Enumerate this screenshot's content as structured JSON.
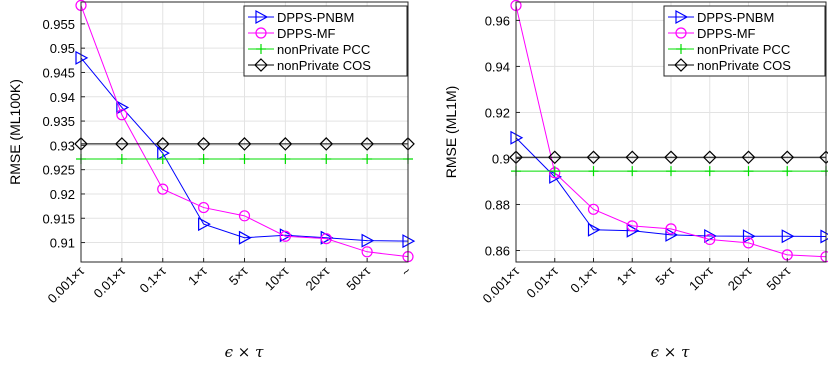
{
  "chart_data": [
    {
      "type": "line",
      "ylabel": "RMSE (ML100K)",
      "xlabel": "ϵ × τ",
      "categories": [
        "0.001×τ",
        "0.01×τ",
        "0.1×τ",
        "1×τ",
        "5×τ",
        "10×τ",
        "20×τ",
        "50×τ",
        "~"
      ],
      "ylim": [
        0.906,
        0.9595
      ],
      "yticks": [
        0.91,
        0.915,
        0.92,
        0.925,
        0.93,
        0.935,
        0.94,
        0.945,
        0.95,
        0.955
      ],
      "ytick_labels": [
        "0.91",
        "0.915",
        "0.92",
        "0.925",
        "0.93",
        "0.935",
        "0.94",
        "0.945",
        "0.95",
        "0.955"
      ],
      "grid": true,
      "legend_position": "top-right",
      "series": [
        {
          "name": "DPPS-PNBM",
          "color": "#0000ff",
          "marker": "triangle-right",
          "values": [
            0.948,
            0.9378,
            0.9284,
            0.9138,
            0.911,
            0.9115,
            0.911,
            0.9104,
            0.9103
          ]
        },
        {
          "name": "DPPS-MF",
          "color": "#ff00ff",
          "marker": "circle",
          "values": [
            0.9588,
            0.9363,
            0.921,
            0.9172,
            0.9155,
            0.9113,
            0.9108,
            0.9081,
            0.9071
          ]
        },
        {
          "name": "nonPrivate PCC",
          "color": "#00dd00",
          "marker": "plus",
          "values": [
            0.9272,
            0.9272,
            0.9272,
            0.9272,
            0.9272,
            0.9272,
            0.9272,
            0.9272,
            0.9272
          ]
        },
        {
          "name": "nonPrivate COS",
          "color": "#000000",
          "marker": "diamond",
          "values": [
            0.9303,
            0.9303,
            0.9303,
            0.9303,
            0.9303,
            0.9303,
            0.9303,
            0.9303,
            0.9303
          ]
        }
      ]
    },
    {
      "type": "line",
      "ylabel": "RMSE (ML1M)",
      "xlabel": "ϵ × τ",
      "categories": [
        "0.001×τ",
        "0.01×τ",
        "0.1×τ",
        "1×τ",
        "5×τ",
        "10×τ",
        "20×τ",
        "50×τ",
        ""
      ],
      "ylim": [
        0.855,
        0.968
      ],
      "yticks": [
        0.86,
        0.88,
        0.9,
        0.92,
        0.94,
        0.96
      ],
      "ytick_labels": [
        "0.86",
        "0.88",
        "0.9",
        "0.92",
        "0.94",
        "0.96"
      ],
      "grid": true,
      "legend_position": "top-right",
      "series": [
        {
          "name": "DPPS-PNBM",
          "color": "#0000ff",
          "marker": "triangle-right",
          "values": [
            0.909,
            0.892,
            0.869,
            0.8686,
            0.8668,
            0.8663,
            0.8662,
            0.8662,
            0.8661
          ]
        },
        {
          "name": "DPPS-MF",
          "color": "#ff00ff",
          "marker": "circle",
          "values": [
            0.9665,
            0.8938,
            0.8779,
            0.8707,
            0.8694,
            0.8648,
            0.8633,
            0.8581,
            0.8573
          ]
        },
        {
          "name": "nonPrivate PCC",
          "color": "#00dd00",
          "marker": "plus",
          "values": [
            0.8945,
            0.8945,
            0.8945,
            0.8945,
            0.8945,
            0.8945,
            0.8945,
            0.8945,
            0.8945
          ]
        },
        {
          "name": "nonPrivate COS",
          "color": "#000000",
          "marker": "diamond",
          "values": [
            0.9005,
            0.9005,
            0.9005,
            0.9005,
            0.9005,
            0.9005,
            0.9005,
            0.9005,
            0.9005
          ]
        }
      ]
    }
  ]
}
